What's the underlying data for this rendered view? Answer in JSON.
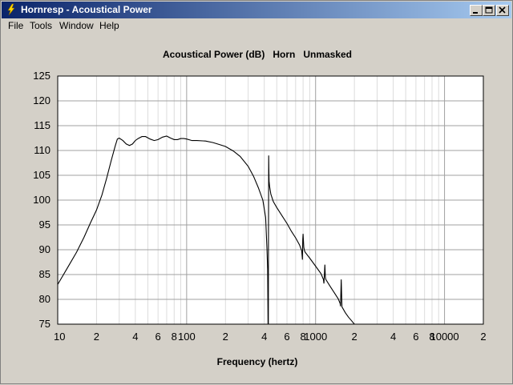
{
  "window": {
    "title": "Hornresp - Acoustical Power",
    "controls": {
      "minimize": "minimize",
      "maximize": "maximize",
      "close": "close"
    }
  },
  "menu": {
    "items": [
      {
        "label": "File"
      },
      {
        "label": "Tools"
      },
      {
        "label": "Window"
      },
      {
        "label": "Help"
      }
    ]
  },
  "colors": {
    "titlebar_start": "#0a246a",
    "titlebar_end": "#a6caf0",
    "window_bg": "#d4d0c8",
    "plot_bg": "#ffffff",
    "grid_major": "#a0a0a0",
    "grid_minor": "#dcdcdc",
    "curve": "#000000"
  },
  "chart_data": {
    "type": "line",
    "title": "Acoustical Power (dB)   Horn   Unmasked",
    "xlabel": "Frequency (hertz)",
    "ylabel": "",
    "x_scale": "log",
    "xlim": [
      10,
      20000
    ],
    "ylim": [
      75,
      125
    ],
    "grid": true,
    "y_ticks": [
      125,
      120,
      115,
      110,
      105,
      100,
      95,
      90,
      85,
      80,
      75
    ],
    "x_ticks": [
      {
        "value": 10,
        "label": "10"
      },
      {
        "value": 20,
        "label": "2"
      },
      {
        "value": 40,
        "label": "4"
      },
      {
        "value": 60,
        "label": "6"
      },
      {
        "value": 80,
        "label": "8"
      },
      {
        "value": 100,
        "label": "100"
      },
      {
        "value": 200,
        "label": "2"
      },
      {
        "value": 400,
        "label": "4"
      },
      {
        "value": 600,
        "label": "6"
      },
      {
        "value": 800,
        "label": "8"
      },
      {
        "value": 1000,
        "label": "1000"
      },
      {
        "value": 2000,
        "label": "2"
      },
      {
        "value": 4000,
        "label": "4"
      },
      {
        "value": 6000,
        "label": "6"
      },
      {
        "value": 8000,
        "label": "8"
      },
      {
        "value": 10000,
        "label": "10000"
      },
      {
        "value": 20000,
        "label": "2"
      }
    ],
    "series": [
      {
        "x": [
          10,
          12,
          14,
          16,
          18,
          20,
          22,
          24,
          26,
          28,
          29,
          30,
          32,
          34,
          36,
          38,
          40,
          42,
          45,
          48,
          52,
          56,
          60,
          65,
          70,
          75,
          80,
          85,
          90,
          95,
          100,
          110,
          120,
          140,
          160,
          180,
          200,
          230,
          260,
          300,
          330,
          360,
          390,
          410,
          420,
          425,
          428,
          430,
          431,
          432,
          433,
          434,
          435,
          436,
          440,
          450,
          470,
          500,
          550,
          600,
          650,
          700,
          750,
          780,
          790,
          795,
          800,
          810,
          820,
          830,
          900,
          1000,
          1100,
          1150,
          1160,
          1170,
          1180,
          1190,
          1200,
          1300,
          1400,
          1500,
          1550,
          1560,
          1570,
          1580,
          1600,
          1700,
          1800,
          1900,
          2000,
          2100
        ],
        "y": [
          83.0,
          86.5,
          89.5,
          92.5,
          95.5,
          98.0,
          101.0,
          104.5,
          108.0,
          111.0,
          112.3,
          112.5,
          112.0,
          111.3,
          111.0,
          111.3,
          112.0,
          112.4,
          112.8,
          112.8,
          112.3,
          112.0,
          112.2,
          112.7,
          112.9,
          112.5,
          112.2,
          112.2,
          112.4,
          112.4,
          112.3,
          112.0,
          112.0,
          111.9,
          111.6,
          111.2,
          110.8,
          109.9,
          108.8,
          106.8,
          104.8,
          102.5,
          100.0,
          96.5,
          90.0,
          86.0,
          75.0,
          75.0,
          90.0,
          101.0,
          109.0,
          106.5,
          104.5,
          103.8,
          102.7,
          101.2,
          99.7,
          98.5,
          96.8,
          95.3,
          93.7,
          92.4,
          91.0,
          89.8,
          88.0,
          92.0,
          93.2,
          90.5,
          89.8,
          89.5,
          88.3,
          86.7,
          85.2,
          84.0,
          83.2,
          85.0,
          87.0,
          84.5,
          84.0,
          82.6,
          81.3,
          80.1,
          79.2,
          78.6,
          81.0,
          84.0,
          78.5,
          77.3,
          76.4,
          75.7,
          75.0,
          74.4
        ]
      }
    ]
  }
}
